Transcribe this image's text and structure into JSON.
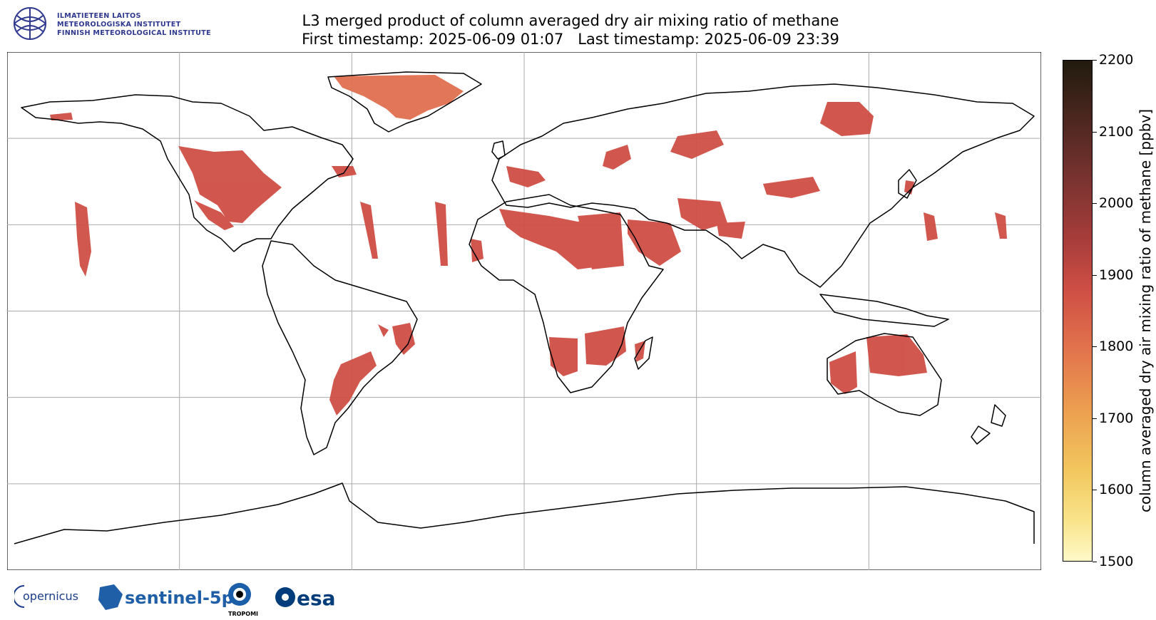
{
  "header": {
    "institute_lines": [
      "ILMATIETEEN LAITOS",
      "METEOROLOGISKA INSTITUTET",
      "FINNISH METEOROLOGICAL INSTITUTE"
    ],
    "title_line1": "L3 merged product of column averaged dry air mixing ratio of methane",
    "title_line2": "First timestamp: 2025-06-09 01:07   Last timestamp: 2025-06-09 23:39"
  },
  "colorbar": {
    "label": "column averaged dry air mixing ratio of methane [ppbv]",
    "min": 1500,
    "max": 2200,
    "ticks": [
      "1500",
      "1600",
      "1700",
      "1800",
      "1900",
      "2000",
      "2100",
      "2200"
    ],
    "colormap": [
      "#fff9c8",
      "#f9e48b",
      "#f2c75e",
      "#ec9f50",
      "#e2744d",
      "#cf4f45",
      "#a83d3b",
      "#7a3330",
      "#4d2720",
      "#211b0e"
    ]
  },
  "map": {
    "projection": "PlateCarree",
    "lon_range": [
      -180,
      180
    ],
    "lat_range": [
      -90,
      90
    ],
    "gridlines": true,
    "grid_lon": [
      -120,
      -60,
      0,
      60,
      120
    ],
    "grid_lat": [
      -60,
      -30,
      0,
      30,
      60
    ],
    "data_color": "#cf4f45"
  },
  "footer": {
    "logos": [
      "opernicus",
      "sentinel-5p",
      "TROPOMI",
      "esa"
    ]
  }
}
